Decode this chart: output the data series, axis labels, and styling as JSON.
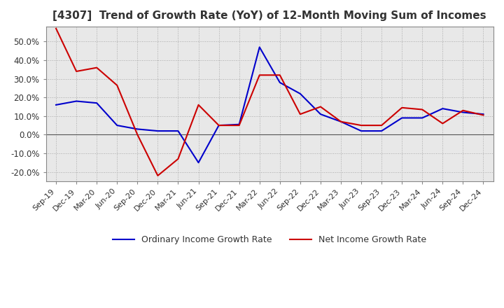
{
  "title": "[4307]  Trend of Growth Rate (YoY) of 12-Month Moving Sum of Incomes",
  "title_fontsize": 11,
  "ylim": [
    -25,
    58
  ],
  "yticks": [
    -20,
    -10,
    0,
    10,
    20,
    30,
    40,
    50
  ],
  "ytick_labels": [
    "-20.0%",
    "-10.0%",
    "0.0%",
    "10.0%",
    "20.0%",
    "30.0%",
    "40.0%",
    "50.0%"
  ],
  "background_color": "#ffffff",
  "grid_color": "#aaaaaa",
  "plot_bg_color": "#e8e8e8",
  "x_labels": [
    "Sep-19",
    "Dec-19",
    "Mar-20",
    "Jun-20",
    "Sep-20",
    "Dec-20",
    "Mar-21",
    "Jun-21",
    "Sep-21",
    "Dec-21",
    "Mar-22",
    "Jun-22",
    "Sep-22",
    "Dec-22",
    "Mar-23",
    "Jun-23",
    "Sep-23",
    "Dec-23",
    "Mar-24",
    "Jun-24",
    "Sep-24",
    "Dec-24"
  ],
  "ordinary_income": [
    16.0,
    18.0,
    17.0,
    5.0,
    3.0,
    2.0,
    2.0,
    -15.0,
    5.0,
    5.5,
    47.0,
    28.0,
    22.0,
    11.0,
    7.0,
    2.0,
    2.0,
    9.0,
    9.0,
    14.0,
    12.0,
    11.0
  ],
  "net_income": [
    57.0,
    34.0,
    36.0,
    26.5,
    0.0,
    -22.0,
    -13.0,
    16.0,
    5.0,
    5.0,
    32.0,
    32.0,
    11.0,
    15.0,
    7.0,
    5.0,
    5.0,
    14.5,
    13.5,
    6.0,
    13.0,
    10.5
  ],
  "ordinary_color": "#0000cc",
  "net_color": "#cc0000",
  "line_width": 1.5,
  "legend_labels": [
    "Ordinary Income Growth Rate",
    "Net Income Growth Rate"
  ]
}
